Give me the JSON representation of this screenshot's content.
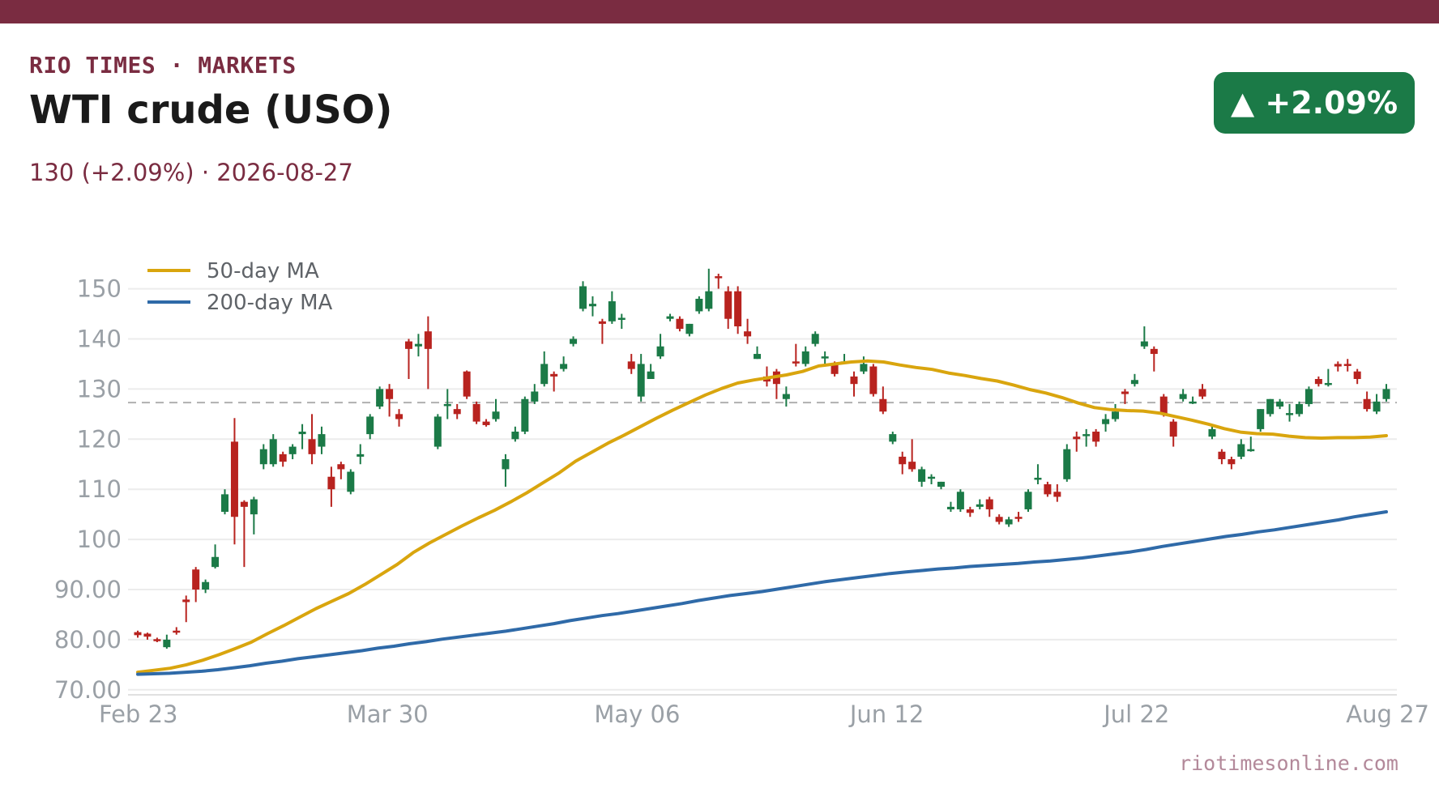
{
  "header": {
    "brand": "RIO TIMES · MARKETS",
    "title": "WTI crude (USO)",
    "subtitle": "130 (+2.09%)  ·  2026-08-27",
    "badge": "▲ +2.09%"
  },
  "footer": {
    "source": "riotimesonline.com"
  },
  "colors": {
    "brand": "#7a2c41",
    "up": "#1b7a47",
    "down": "#b8231f",
    "ma50": "#d9a50e",
    "ma200": "#2f6aa8",
    "reference_line": "#b0b0b0"
  },
  "chart_data": {
    "type": "candlestick",
    "x_ticks": [
      "Feb 23",
      "Mar 30",
      "May 06",
      "Jun 12",
      "Jul 22",
      "Aug 27"
    ],
    "y_ticks": [
      "70.00",
      "80.00",
      "90.00",
      "100",
      "110",
      "120",
      "130",
      "140",
      "150"
    ],
    "y_tick_values": [
      70,
      80,
      90,
      100,
      110,
      120,
      130,
      140,
      150
    ],
    "ylim": [
      69,
      153
    ],
    "reference_value": 127.3,
    "legend": {
      "position": "top-left",
      "entries": [
        {
          "label": "50-day MA",
          "color": "#d9a50e"
        },
        {
          "label": "200-day MA",
          "color": "#2f6aa8"
        }
      ]
    },
    "candles": [
      {
        "o": 81.5,
        "h": 81.8,
        "l": 80.4,
        "c": 80.9
      },
      {
        "o": 81.2,
        "h": 81.4,
        "l": 80.0,
        "c": 80.6
      },
      {
        "o": 80.1,
        "h": 80.4,
        "l": 79.5,
        "c": 79.7
      },
      {
        "o": 78.5,
        "h": 81.0,
        "l": 78.2,
        "c": 80.0
      },
      {
        "o": 81.8,
        "h": 82.5,
        "l": 81.0,
        "c": 81.5
      },
      {
        "o": 88.0,
        "h": 88.8,
        "l": 83.5,
        "c": 87.5
      },
      {
        "o": 94.0,
        "h": 94.5,
        "l": 87.5,
        "c": 90.0
      },
      {
        "o": 90.0,
        "h": 92.0,
        "l": 89.3,
        "c": 91.5
      },
      {
        "o": 94.5,
        "h": 99.0,
        "l": 94.2,
        "c": 96.5
      },
      {
        "o": 105.5,
        "h": 110.0,
        "l": 105.0,
        "c": 109.0
      },
      {
        "o": 119.5,
        "h": 124.2,
        "l": 99.0,
        "c": 104.5
      },
      {
        "o": 107.5,
        "h": 107.8,
        "l": 94.5,
        "c": 106.5
      },
      {
        "o": 105.0,
        "h": 108.5,
        "l": 101.0,
        "c": 108.0
      },
      {
        "o": 115.0,
        "h": 119.0,
        "l": 114.0,
        "c": 118.0
      },
      {
        "o": 115.0,
        "h": 121.0,
        "l": 114.5,
        "c": 120.0
      },
      {
        "o": 117.0,
        "h": 117.5,
        "l": 114.5,
        "c": 115.5
      },
      {
        "o": 117.0,
        "h": 119.0,
        "l": 116.0,
        "c": 118.5
      },
      {
        "o": 121.0,
        "h": 123.0,
        "l": 118.0,
        "c": 121.5
      },
      {
        "o": 120.0,
        "h": 125.0,
        "l": 115.0,
        "c": 117.0
      },
      {
        "o": 118.5,
        "h": 122.5,
        "l": 117.0,
        "c": 121.0
      },
      {
        "o": 112.5,
        "h": 114.5,
        "l": 106.5,
        "c": 110.0
      },
      {
        "o": 115.0,
        "h": 115.5,
        "l": 112.0,
        "c": 114.0
      },
      {
        "o": 109.5,
        "h": 114.0,
        "l": 109.0,
        "c": 113.5
      },
      {
        "o": 116.5,
        "h": 119.0,
        "l": 115.0,
        "c": 117.0
      },
      {
        "o": 121.0,
        "h": 125.0,
        "l": 120.0,
        "c": 124.5
      },
      {
        "o": 126.5,
        "h": 130.5,
        "l": 126.0,
        "c": 130.0
      },
      {
        "o": 130.0,
        "h": 131.0,
        "l": 124.5,
        "c": 128.0
      },
      {
        "o": 125.0,
        "h": 126.0,
        "l": 122.5,
        "c": 124.0
      },
      {
        "o": 139.5,
        "h": 140.0,
        "l": 132.0,
        "c": 138.0
      },
      {
        "o": 138.5,
        "h": 141.0,
        "l": 136.5,
        "c": 139.0
      },
      {
        "o": 141.5,
        "h": 144.5,
        "l": 130.0,
        "c": 138.0
      },
      {
        "o": 118.5,
        "h": 125.0,
        "l": 118.0,
        "c": 124.5
      },
      {
        "o": 127.0,
        "h": 130.0,
        "l": 124.0,
        "c": 127.0
      },
      {
        "o": 126.0,
        "h": 127.0,
        "l": 124.0,
        "c": 125.0
      },
      {
        "o": 133.5,
        "h": 133.7,
        "l": 128.0,
        "c": 128.5
      },
      {
        "o": 127.0,
        "h": 127.5,
        "l": 123.0,
        "c": 123.5
      },
      {
        "o": 123.5,
        "h": 124.0,
        "l": 122.5,
        "c": 122.8
      },
      {
        "o": 124.0,
        "h": 128.0,
        "l": 123.5,
        "c": 125.5
      },
      {
        "o": 114.0,
        "h": 117.0,
        "l": 110.5,
        "c": 116.0
      },
      {
        "o": 120.0,
        "h": 122.5,
        "l": 119.5,
        "c": 121.5
      },
      {
        "o": 121.5,
        "h": 128.5,
        "l": 121.0,
        "c": 128.0
      },
      {
        "o": 127.5,
        "h": 131.0,
        "l": 127.0,
        "c": 129.5
      },
      {
        "o": 131.0,
        "h": 137.5,
        "l": 130.5,
        "c": 135.0
      },
      {
        "o": 133.0,
        "h": 133.5,
        "l": 129.5,
        "c": 132.5
      },
      {
        "o": 134.0,
        "h": 136.5,
        "l": 133.5,
        "c": 135.0
      },
      {
        "o": 139.0,
        "h": 140.5,
        "l": 138.5,
        "c": 140.0
      },
      {
        "o": 146.0,
        "h": 151.5,
        "l": 145.5,
        "c": 150.5
      },
      {
        "o": 146.5,
        "h": 148.5,
        "l": 144.5,
        "c": 147.0
      },
      {
        "o": 143.5,
        "h": 144.0,
        "l": 139.0,
        "c": 143.0
      },
      {
        "o": 143.5,
        "h": 149.5,
        "l": 143.0,
        "c": 147.5
      },
      {
        "o": 144.0,
        "h": 145.0,
        "l": 142.0,
        "c": 144.2
      },
      {
        "o": 135.5,
        "h": 137.0,
        "l": 133.0,
        "c": 134.0
      },
      {
        "o": 128.5,
        "h": 137.0,
        "l": 127.5,
        "c": 135.0
      },
      {
        "o": 132.0,
        "h": 135.0,
        "l": 132.0,
        "c": 133.5
      },
      {
        "o": 136.5,
        "h": 141.0,
        "l": 136.0,
        "c": 138.5
      },
      {
        "o": 144.0,
        "h": 145.0,
        "l": 143.5,
        "c": 144.5
      },
      {
        "o": 144.0,
        "h": 144.5,
        "l": 141.5,
        "c": 142.0
      },
      {
        "o": 141.0,
        "h": 143.0,
        "l": 140.5,
        "c": 143.0
      },
      {
        "o": 145.5,
        "h": 148.5,
        "l": 145.0,
        "c": 148.0
      },
      {
        "o": 146.0,
        "h": 154.0,
        "l": 145.5,
        "c": 149.5
      },
      {
        "o": 152.5,
        "h": 153.0,
        "l": 150.0,
        "c": 152.3
      },
      {
        "o": 149.5,
        "h": 150.5,
        "l": 142.0,
        "c": 144.0
      },
      {
        "o": 149.5,
        "h": 150.5,
        "l": 141.0,
        "c": 142.5
      },
      {
        "o": 141.5,
        "h": 144.0,
        "l": 139.0,
        "c": 140.5
      },
      {
        "o": 136.0,
        "h": 138.5,
        "l": 136.0,
        "c": 137.0
      },
      {
        "o": 132.5,
        "h": 134.5,
        "l": 130.5,
        "c": 131.5
      },
      {
        "o": 133.5,
        "h": 134.0,
        "l": 128.0,
        "c": 131.0
      },
      {
        "o": 128.0,
        "h": 130.5,
        "l": 126.5,
        "c": 129.0
      },
      {
        "o": 135.5,
        "h": 139.0,
        "l": 134.5,
        "c": 135.3
      },
      {
        "o": 135.0,
        "h": 138.5,
        "l": 134.5,
        "c": 137.5
      },
      {
        "o": 139.0,
        "h": 141.5,
        "l": 138.5,
        "c": 141.0
      },
      {
        "o": 136.5,
        "h": 137.5,
        "l": 135.0,
        "c": 136.5
      },
      {
        "o": 135.0,
        "h": 135.5,
        "l": 132.5,
        "c": 133.0
      },
      {
        "o": 135.5,
        "h": 137.0,
        "l": 135.0,
        "c": 135.5
      },
      {
        "o": 132.5,
        "h": 133.5,
        "l": 128.5,
        "c": 131.0
      },
      {
        "o": 133.5,
        "h": 136.5,
        "l": 133.0,
        "c": 135.0
      },
      {
        "o": 134.5,
        "h": 135.0,
        "l": 128.5,
        "c": 129.0
      },
      {
        "o": 128.0,
        "h": 130.5,
        "l": 125.0,
        "c": 125.5
      },
      {
        "o": 119.5,
        "h": 121.5,
        "l": 119.0,
        "c": 121.0
      },
      {
        "o": 116.5,
        "h": 117.5,
        "l": 113.0,
        "c": 115.0
      },
      {
        "o": 115.5,
        "h": 120.0,
        "l": 113.5,
        "c": 114.0
      },
      {
        "o": 111.5,
        "h": 114.5,
        "l": 110.5,
        "c": 114.0
      },
      {
        "o": 112.5,
        "h": 113.0,
        "l": 111.0,
        "c": 112.5
      },
      {
        "o": 110.5,
        "h": 111.5,
        "l": 110.0,
        "c": 111.5
      },
      {
        "o": 106.0,
        "h": 107.5,
        "l": 105.5,
        "c": 106.5
      },
      {
        "o": 106.0,
        "h": 110.0,
        "l": 105.5,
        "c": 109.5
      },
      {
        "o": 106.0,
        "h": 106.5,
        "l": 104.5,
        "c": 105.3
      },
      {
        "o": 106.5,
        "h": 108.0,
        "l": 106.0,
        "c": 107.0
      },
      {
        "o": 108.0,
        "h": 108.5,
        "l": 104.5,
        "c": 106.0
      },
      {
        "o": 104.5,
        "h": 105.0,
        "l": 103.0,
        "c": 103.5
      },
      {
        "o": 103.0,
        "h": 104.5,
        "l": 102.5,
        "c": 104.0
      },
      {
        "o": 104.5,
        "h": 105.5,
        "l": 103.5,
        "c": 104.3
      },
      {
        "o": 106.0,
        "h": 110.0,
        "l": 105.5,
        "c": 109.5
      },
      {
        "o": 112.0,
        "h": 115.0,
        "l": 111.0,
        "c": 112.3
      },
      {
        "o": 111.0,
        "h": 111.5,
        "l": 108.5,
        "c": 109.0
      },
      {
        "o": 109.5,
        "h": 111.0,
        "l": 107.5,
        "c": 108.5
      },
      {
        "o": 112.0,
        "h": 119.0,
        "l": 111.5,
        "c": 118.0
      },
      {
        "o": 120.5,
        "h": 121.5,
        "l": 117.5,
        "c": 120.0
      },
      {
        "o": 121.0,
        "h": 122.0,
        "l": 118.5,
        "c": 121.0
      },
      {
        "o": 121.5,
        "h": 122.0,
        "l": 118.5,
        "c": 119.5
      },
      {
        "o": 123.0,
        "h": 125.0,
        "l": 121.5,
        "c": 124.0
      },
      {
        "o": 124.0,
        "h": 127.0,
        "l": 123.5,
        "c": 125.5
      },
      {
        "o": 129.5,
        "h": 130.0,
        "l": 127.0,
        "c": 129.0
      },
      {
        "o": 131.0,
        "h": 133.0,
        "l": 130.5,
        "c": 131.8
      },
      {
        "o": 138.5,
        "h": 142.5,
        "l": 138.0,
        "c": 139.5
      },
      {
        "o": 138.0,
        "h": 138.5,
        "l": 133.5,
        "c": 137.0
      },
      {
        "o": 128.5,
        "h": 129.0,
        "l": 124.5,
        "c": 125.0
      },
      {
        "o": 123.5,
        "h": 124.0,
        "l": 118.5,
        "c": 120.5
      },
      {
        "o": 128.0,
        "h": 130.0,
        "l": 127.5,
        "c": 129.0
      },
      {
        "o": 127.5,
        "h": 128.5,
        "l": 127.0,
        "c": 127.5
      },
      {
        "o": 130.0,
        "h": 131.0,
        "l": 128.0,
        "c": 128.5
      },
      {
        "o": 120.5,
        "h": 122.5,
        "l": 120.0,
        "c": 122.0
      },
      {
        "o": 117.5,
        "h": 118.0,
        "l": 115.0,
        "c": 116.0
      },
      {
        "o": 116.0,
        "h": 116.5,
        "l": 114.0,
        "c": 115.0
      },
      {
        "o": 116.5,
        "h": 120.0,
        "l": 116.0,
        "c": 119.0
      },
      {
        "o": 118.0,
        "h": 120.5,
        "l": 117.5,
        "c": 118.0
      },
      {
        "o": 122.0,
        "h": 126.0,
        "l": 121.5,
        "c": 126.0
      },
      {
        "o": 125.0,
        "h": 128.0,
        "l": 124.5,
        "c": 128.0
      },
      {
        "o": 126.5,
        "h": 128.0,
        "l": 126.0,
        "c": 127.5
      },
      {
        "o": 125.0,
        "h": 127.0,
        "l": 123.5,
        "c": 125.2
      },
      {
        "o": 125.0,
        "h": 127.5,
        "l": 124.5,
        "c": 127.0
      },
      {
        "o": 127.0,
        "h": 130.5,
        "l": 126.5,
        "c": 130.0
      },
      {
        "o": 132.0,
        "h": 132.5,
        "l": 130.5,
        "c": 131.0
      },
      {
        "o": 131.0,
        "h": 134.0,
        "l": 130.5,
        "c": 131.2
      },
      {
        "o": 135.0,
        "h": 135.5,
        "l": 133.5,
        "c": 134.5
      },
      {
        "o": 135.0,
        "h": 136.0,
        "l": 133.5,
        "c": 134.8
      },
      {
        "o": 133.5,
        "h": 134.0,
        "l": 131.0,
        "c": 132.0
      },
      {
        "o": 128.0,
        "h": 129.5,
        "l": 125.5,
        "c": 126.0
      },
      {
        "o": 125.5,
        "h": 129.0,
        "l": 125.0,
        "c": 127.5
      },
      {
        "o": 128.0,
        "h": 131.0,
        "l": 127.5,
        "c": 130.0
      }
    ],
    "series": [
      {
        "name": "50-day MA",
        "values": [
          73.5,
          73.9,
          74.3,
          75.0,
          75.9,
          77.0,
          78.2,
          79.5,
          81.2,
          82.8,
          84.5,
          86.2,
          87.7,
          89.2,
          91.0,
          93.0,
          95.0,
          97.4,
          99.3,
          101.0,
          102.7,
          104.3,
          105.8,
          107.5,
          109.3,
          111.3,
          113.3,
          115.6,
          117.4,
          119.2,
          120.8,
          122.5,
          124.2,
          125.8,
          127.3,
          128.8,
          130.1,
          131.2,
          131.8,
          132.3,
          132.8,
          133.5,
          134.6,
          135.0,
          135.4,
          135.6,
          135.4,
          134.8,
          134.3,
          133.9,
          133.2,
          132.7,
          132.1,
          131.6,
          130.8,
          129.9,
          129.2,
          128.3,
          127.2,
          126.3,
          125.9,
          125.7,
          125.6,
          125.2,
          124.5,
          123.8,
          123.0,
          122.1,
          121.4,
          121.1,
          121.0,
          120.6,
          120.3,
          120.2,
          120.3,
          120.3,
          120.4,
          120.7
        ]
      },
      {
        "name": "200-day MA",
        "values": [
          73.1,
          73.2,
          73.3,
          73.5,
          73.7,
          74.0,
          74.4,
          74.8,
          75.3,
          75.7,
          76.2,
          76.6,
          77.0,
          77.4,
          77.8,
          78.3,
          78.7,
          79.2,
          79.6,
          80.1,
          80.5,
          80.9,
          81.3,
          81.7,
          82.2,
          82.7,
          83.2,
          83.8,
          84.3,
          84.8,
          85.2,
          85.7,
          86.2,
          86.7,
          87.2,
          87.8,
          88.3,
          88.8,
          89.2,
          89.6,
          90.1,
          90.6,
          91.1,
          91.6,
          92.0,
          92.4,
          92.8,
          93.2,
          93.5,
          93.8,
          94.1,
          94.3,
          94.6,
          94.8,
          95.0,
          95.2,
          95.5,
          95.7,
          96.0,
          96.3,
          96.7,
          97.1,
          97.5,
          98.0,
          98.6,
          99.1,
          99.6,
          100.1,
          100.6,
          101.0,
          101.5,
          101.9,
          102.4,
          102.9,
          103.4,
          103.9,
          104.5,
          105.0,
          105.5
        ]
      }
    ]
  }
}
